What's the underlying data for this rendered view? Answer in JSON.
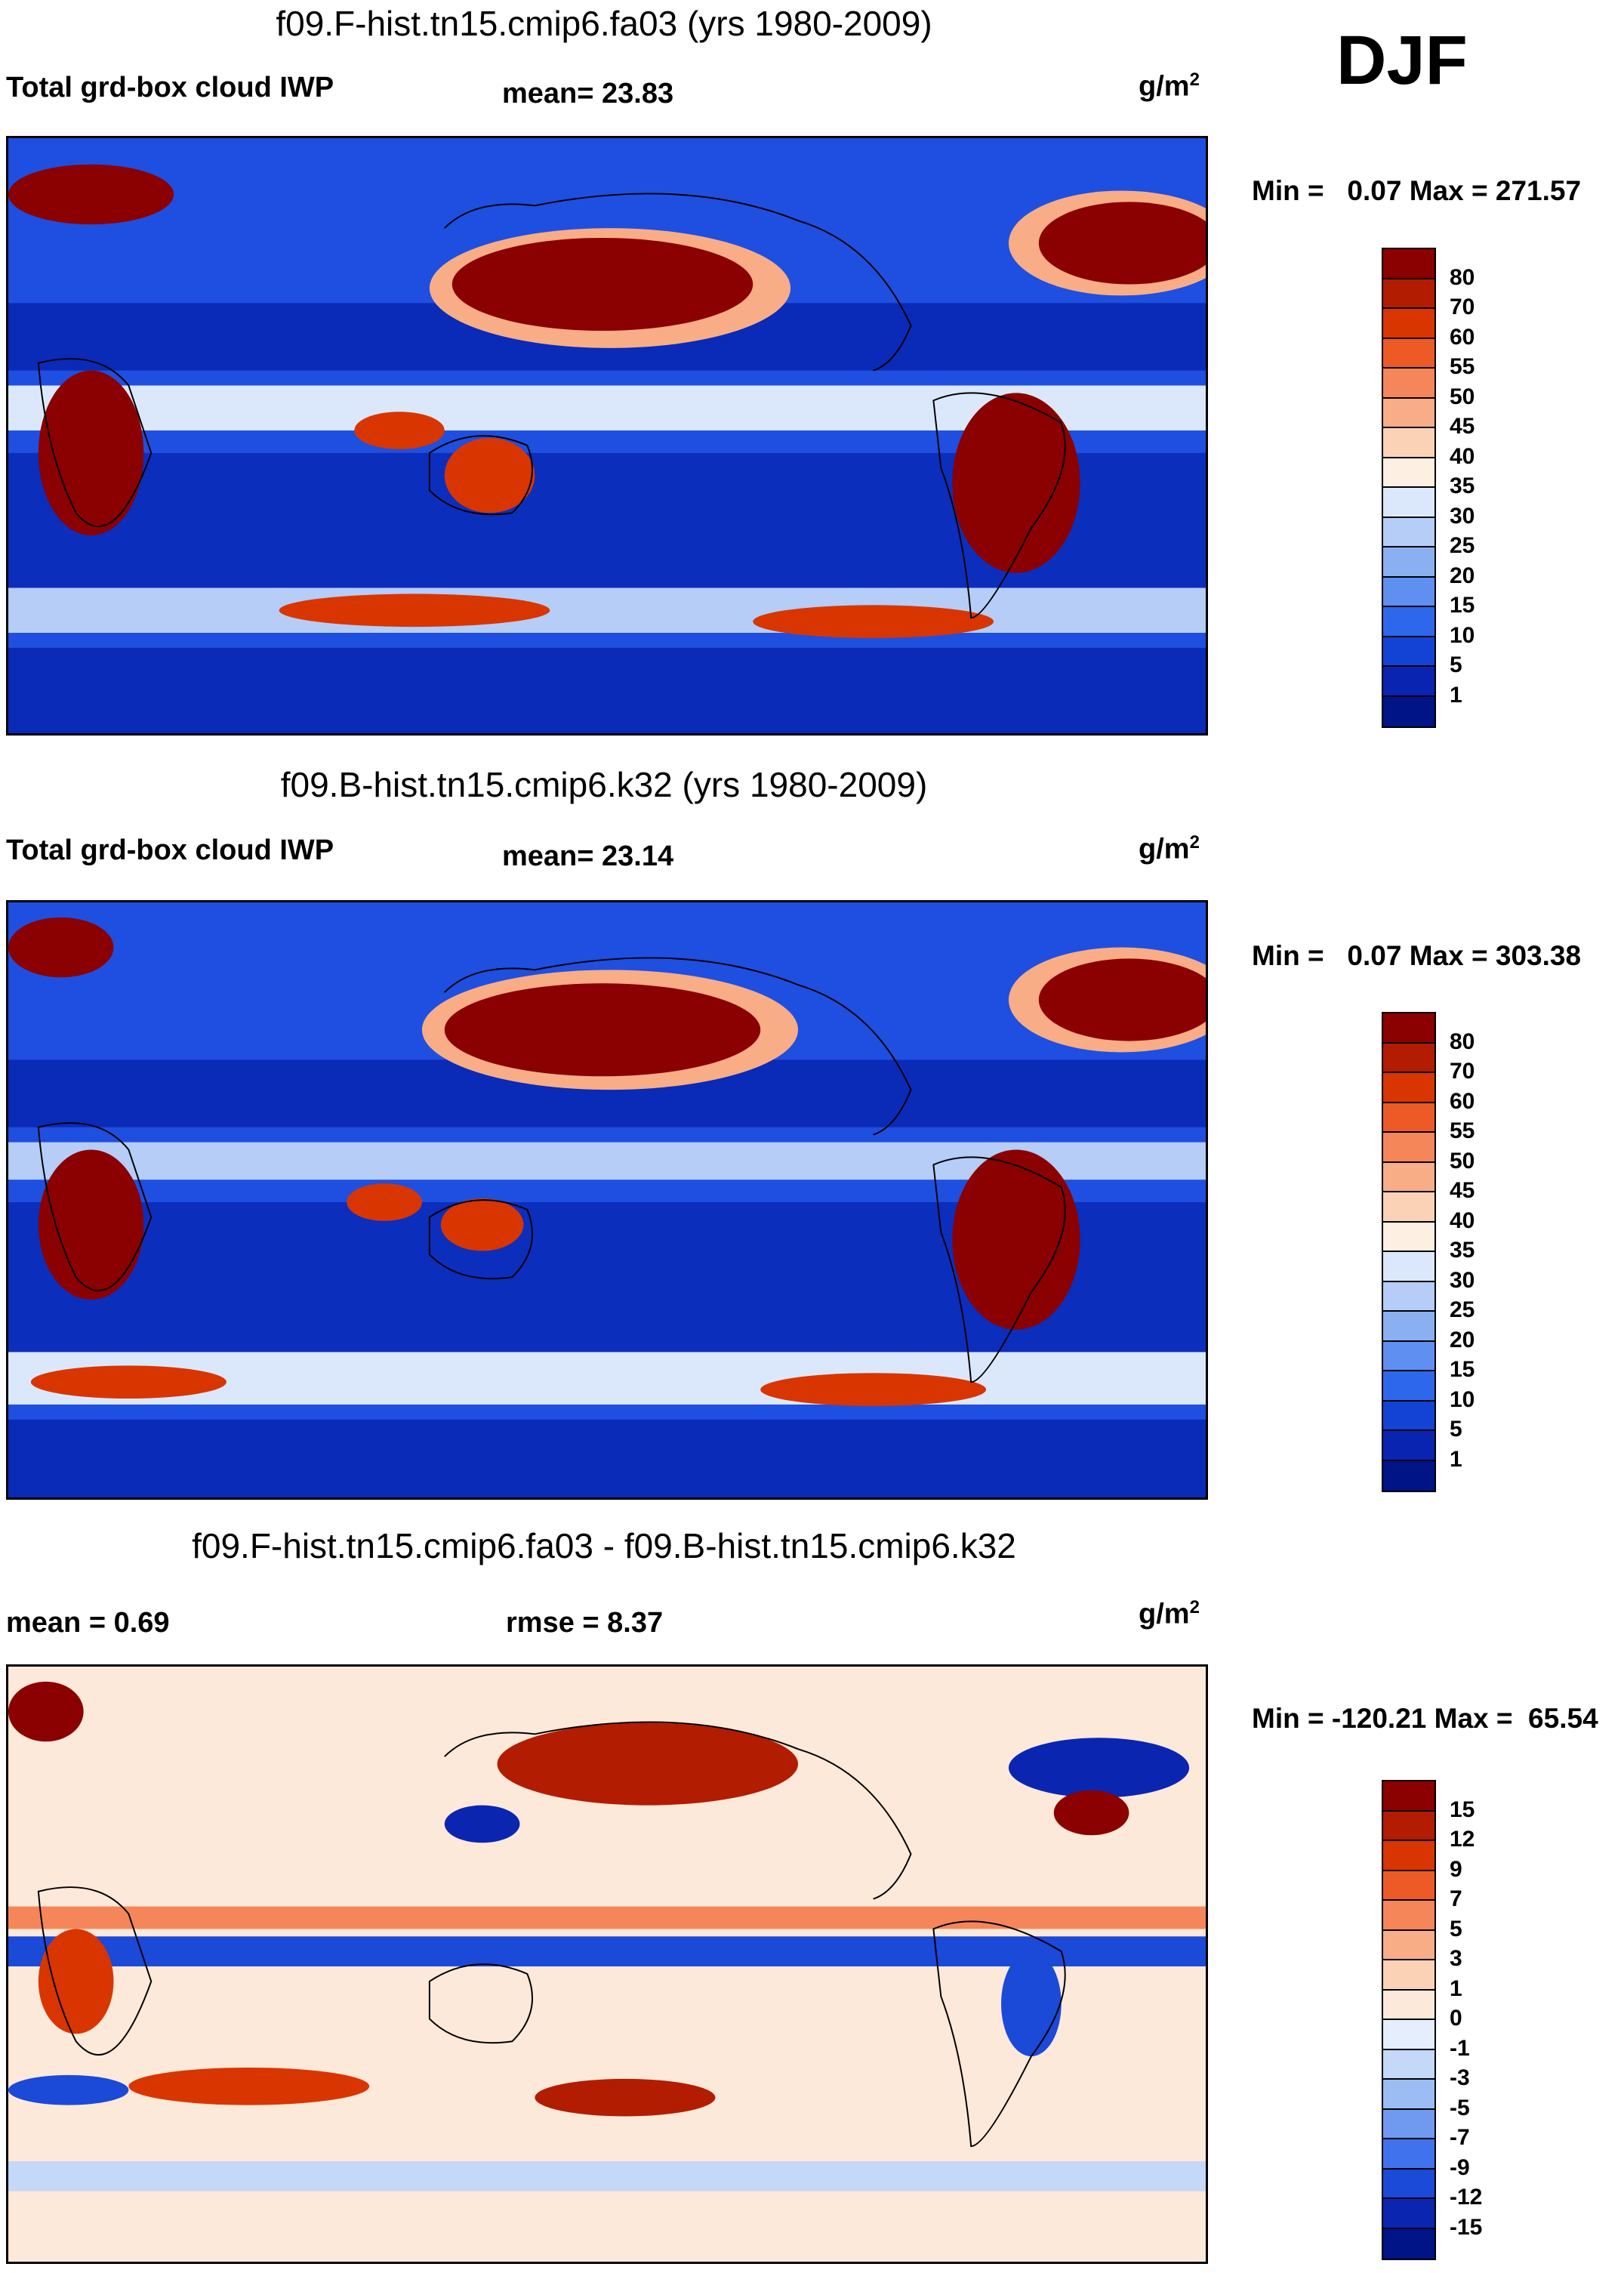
{
  "season": "DJF",
  "units_main": "g/m",
  "units_sup": "2",
  "panels": [
    {
      "title": "f09.F-hist.tn15.cmip6.fa03 (yrs 1980-2009)",
      "left_label": "Total grd-box cloud IWP",
      "stat": "mean=  23.83",
      "minmax": "Min =   0.07 Max = 271.57",
      "levels": [
        "80",
        "70",
        "60",
        "55",
        "50",
        "45",
        "40",
        "35",
        "30",
        "25",
        "20",
        "15",
        "10",
        "5",
        "1"
      ],
      "colors": [
        "#8b0000",
        "#b21c00",
        "#d93500",
        "#ee5a25",
        "#f5865a",
        "#f8ad87",
        "#fbd2b6",
        "#fdf0e2",
        "#dbe8fb",
        "#b5cdf7",
        "#8ab0f2",
        "#5f8ff0",
        "#2d67ec",
        "#1343d4",
        "#0a24b2",
        "#001487"
      ]
    },
    {
      "title": "f09.B-hist.tn15.cmip6.k32 (yrs 1980-2009)",
      "left_label": "Total grd-box cloud IWP",
      "stat": "mean=  23.14",
      "minmax": "Min =   0.07 Max = 303.38",
      "levels": [
        "80",
        "70",
        "60",
        "55",
        "50",
        "45",
        "40",
        "35",
        "30",
        "25",
        "20",
        "15",
        "10",
        "5",
        "1"
      ],
      "colors": [
        "#8b0000",
        "#b21c00",
        "#d93500",
        "#ee5a25",
        "#f5865a",
        "#f8ad87",
        "#fbd2b6",
        "#fdf0e2",
        "#dbe8fb",
        "#b5cdf7",
        "#8ab0f2",
        "#5f8ff0",
        "#2d67ec",
        "#1343d4",
        "#0a24b2",
        "#001487"
      ]
    },
    {
      "title": "f09.F-hist.tn15.cmip6.fa03 - f09.B-hist.tn15.cmip6.k32",
      "left_label": "mean =   0.69",
      "stat": "rmse =   8.37",
      "minmax": "Min = -120.21 Max =  65.54",
      "levels": [
        "15",
        "12",
        "9",
        "7",
        "5",
        "3",
        "1",
        "0",
        "-1",
        "-3",
        "-5",
        "-7",
        "-9",
        "-12",
        "-15"
      ],
      "colors": [
        "#8b0000",
        "#b21c00",
        "#d93500",
        "#ee5a25",
        "#f5865a",
        "#f8ad87",
        "#fbd2b6",
        "#fde9d9",
        "#e4eefc",
        "#c4d8f8",
        "#9cbcf4",
        "#6f9af0",
        "#3f72ec",
        "#1b49d8",
        "#0a26b0",
        "#001487"
      ]
    }
  ],
  "map_colors": {
    "ocean_a": "#1f4fe0",
    "ocean_b": "#0a2ab8",
    "hi": "#8b0000",
    "mid": "#d93500",
    "light": "#f8ad87",
    "pale": "#dbe8fb",
    "diff_bg": "#fde9d9"
  }
}
